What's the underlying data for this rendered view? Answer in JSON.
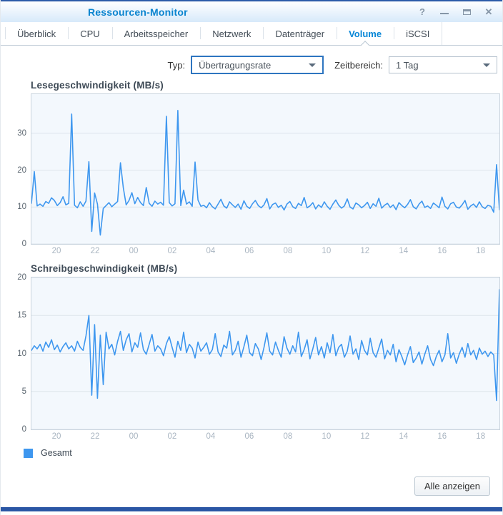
{
  "window": {
    "title": "Ressourcen-Monitor"
  },
  "titlebar": {
    "help_glyph": "?",
    "close_glyph": "✕",
    "icons": [
      "help-icon",
      "minimize-icon",
      "maximize-icon",
      "close-icon"
    ]
  },
  "tabs": [
    {
      "label": "Überblick",
      "active": false
    },
    {
      "label": "CPU",
      "active": false
    },
    {
      "label": "Arbeitsspeicher",
      "active": false
    },
    {
      "label": "Netzwerk",
      "active": false
    },
    {
      "label": "Datenträger",
      "active": false
    },
    {
      "label": "Volume",
      "active": true
    },
    {
      "label": "iSCSI",
      "active": false
    }
  ],
  "controls": {
    "type_label": "Typ:",
    "type_value": "Übertragungsrate",
    "range_label": "Zeitbereich:",
    "range_value": "1 Tag"
  },
  "legend": {
    "label": "Gesamt"
  },
  "footer": {
    "show_all_label": "Alle anzeigen"
  },
  "colors": {
    "accent_blue": "#0a84cf",
    "line": "#3e97ef",
    "gridline": "#dee5ec",
    "plot_bg": "#f3f8fd",
    "plot_border": "#c9d4de",
    "window_border_blue": "#2a56a4"
  },
  "chart_data": [
    {
      "type": "line",
      "title": "Lesegeschwindigkeit (MB/s)",
      "ylabel": "MB/s",
      "ylim": [
        0,
        40.6
      ],
      "yticks": [
        0,
        10,
        20,
        30
      ],
      "xticks": [
        "20",
        "22",
        "00",
        "02",
        "04",
        "06",
        "08",
        "10",
        "12",
        "14",
        "16",
        "18"
      ],
      "x_first_frac": 0.055,
      "x_step_frac": 0.0824,
      "grid": true,
      "legend_position": "bottom-left",
      "series": [
        {
          "name": "Gesamt",
          "values": [
            11.0,
            19.6,
            10.3,
            10.8,
            10.2,
            11.5,
            11.0,
            12.5,
            11.8,
            10.4,
            11.2,
            12.8,
            10.6,
            11.0,
            35.2,
            10.5,
            9.8,
            11.4,
            10.2,
            11.6,
            22.3,
            3.4,
            13.8,
            10.8,
            2.4,
            9.6,
            10.4,
            11.2,
            10.1,
            10.8,
            11.5,
            22.0,
            15.2,
            10.6,
            11.8,
            13.9,
            10.9,
            12.6,
            11.2,
            10.4,
            15.3,
            11.0,
            10.2,
            11.6,
            10.8,
            11.3,
            10.5,
            34.6,
            11.2,
            10.3,
            10.9,
            36.2,
            10.4,
            14.6,
            10.8,
            11.4,
            10.2,
            22.2,
            11.9,
            10.2,
            10.5,
            9.8,
            11.2,
            10.1,
            9.5,
            10.8,
            12.1,
            10.3,
            9.7,
            11.4,
            10.6,
            9.9,
            10.8,
            9.4,
            11.7,
            10.2,
            9.6,
            10.9,
            11.8,
            10.4,
            9.8,
            10.6,
            12.3,
            9.5,
            10.7,
            11.1,
            9.9,
            10.5,
            9.2,
            10.8,
            11.5,
            10.1,
            9.6,
            11.0,
            10.4,
            12.6,
            9.8,
            10.3,
            11.2,
            9.5,
            10.6,
            9.9,
            11.4,
            10.2,
            9.4,
            10.8,
            11.9,
            10.5,
            9.7,
            10.3,
            12.2,
            10.0,
            9.5,
            11.1,
            10.6,
            9.8,
            10.4,
            11.3,
            9.6,
            10.9,
            10.2,
            12.4,
            9.7,
            10.5,
            11.0,
            9.9,
            10.6,
            9.3,
            11.2,
            10.4,
            9.8,
            10.7,
            12.0,
            10.1,
            9.5,
            10.8,
            11.6,
            9.9,
            10.3,
            9.6,
            11.1,
            10.5,
            9.8,
            12.7,
            10.2,
            9.5,
            10.9,
            11.3,
            10.0,
            9.7,
            10.6,
            11.8,
            9.4,
            10.3,
            10.8,
            9.9,
            11.4,
            10.1,
            9.6,
            10.5,
            10.2,
            8.6,
            21.5,
            9.3
          ]
        }
      ]
    },
    {
      "type": "line",
      "title": "Schreibgeschwindigkeit (MB/s)",
      "ylabel": "MB/s",
      "ylim": [
        0,
        20
      ],
      "yticks": [
        0,
        5,
        10,
        15,
        20
      ],
      "xticks": [
        "20",
        "22",
        "00",
        "02",
        "04",
        "06",
        "08",
        "10",
        "12",
        "14",
        "16",
        "18"
      ],
      "x_first_frac": 0.055,
      "x_step_frac": 0.0824,
      "grid": true,
      "legend_position": "bottom-left",
      "series": [
        {
          "name": "Gesamt",
          "values": [
            10.4,
            11.0,
            10.6,
            11.2,
            10.3,
            11.5,
            10.8,
            11.8,
            10.5,
            11.1,
            10.2,
            10.9,
            11.4,
            10.6,
            11.0,
            10.3,
            11.6,
            10.8,
            10.4,
            12.3,
            15.0,
            4.5,
            13.8,
            4.1,
            12.4,
            5.9,
            12.8,
            10.6,
            11.2,
            9.8,
            11.6,
            12.9,
            10.4,
            11.8,
            12.6,
            10.2,
            11.4,
            10.8,
            12.7,
            10.5,
            9.9,
            11.2,
            12.5,
            10.3,
            11.0,
            10.6,
            9.7,
            11.3,
            12.2,
            10.8,
            9.5,
            11.6,
            10.4,
            12.8,
            10.1,
            11.2,
            10.7,
            9.4,
            11.5,
            10.3,
            10.8,
            11.4,
            9.9,
            10.5,
            12.6,
            10.2,
            9.6,
            11.1,
            10.7,
            12.9,
            9.8,
            10.4,
            11.6,
            9.5,
            10.9,
            12.4,
            10.1,
            9.7,
            11.3,
            10.6,
            9.2,
            10.8,
            12.7,
            10.3,
            9.8,
            11.5,
            10.4,
            9.5,
            12.2,
            10.7,
            9.9,
            11.0,
            10.2,
            12.8,
            9.6,
            10.5,
            11.8,
            9.3,
            10.6,
            12.1,
            9.8,
            10.9,
            9.4,
            11.4,
            10.1,
            12.5,
            9.7,
            10.8,
            11.2,
            9.5,
            10.3,
            12.3,
            9.9,
            10.6,
            9.2,
            11.7,
            10.4,
            9.8,
            12.0,
            10.1,
            9.5,
            10.7,
            11.9,
            9.3,
            10.4,
            9.8,
            11.2,
            8.9,
            10.5,
            9.6,
            8.5,
            9.8,
            10.9,
            8.8,
            9.4,
            10.2,
            8.6,
            9.9,
            11.0,
            9.2,
            8.4,
            9.6,
            10.4,
            8.9,
            9.8,
            12.6,
            9.4,
            10.1,
            8.7,
            9.9,
            10.8,
            9.5,
            11.3,
            9.8,
            10.4,
            9.2,
            10.7,
            9.9,
            10.3,
            9.6,
            10.2,
            9.8,
            3.8,
            18.4
          ]
        }
      ]
    }
  ]
}
